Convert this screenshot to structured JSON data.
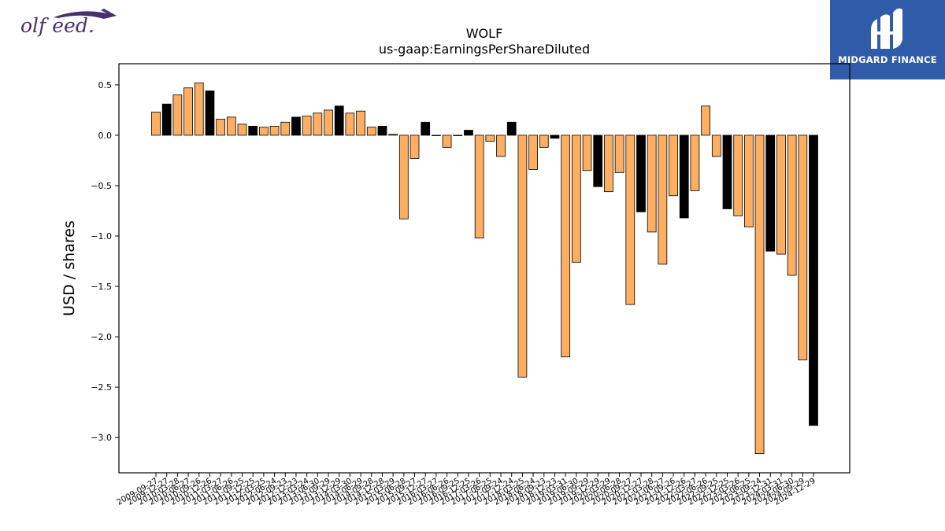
{
  "logos": {
    "left_text": "olf eed.",
    "right_text": "MIDGARD FINANCE"
  },
  "chart_data": {
    "type": "bar",
    "title": "WOLF",
    "subtitle": "us-gaap:EarningsPerShareDiluted",
    "xlabel": "",
    "ylabel": "USD / shares",
    "ylim": [
      -3.35,
      0.71
    ],
    "yticks": [
      0.5,
      0.0,
      -0.5,
      -1.0,
      -1.5,
      -2.0,
      -2.5,
      -3.0
    ],
    "ytick_labels": [
      "0.5",
      "0.0",
      "−0.5",
      "−1.0",
      "−1.5",
      "−2.0",
      "−2.5",
      "−3.0"
    ],
    "grid": false,
    "colors": {
      "quarter": "#fdae61",
      "annual": "#000000",
      "edge": "#000000"
    },
    "categories": [
      "2009-09-27",
      "2009-12-27",
      "2010-03-28",
      "2010-06-27",
      "2010-09-26",
      "2010-12-26",
      "2011-03-27",
      "2011-06-26",
      "2011-09-25",
      "2011-12-25",
      "2012-03-25",
      "2012-06-24",
      "2012-09-23",
      "2012-12-23",
      "2013-03-24",
      "2013-06-30",
      "2013-09-29",
      "2013-12-29",
      "2014-03-30",
      "2014-06-29",
      "2014-09-28",
      "2014-12-28",
      "2015-03-29",
      "2015-06-28",
      "2015-09-27",
      "2015-12-27",
      "2016-03-27",
      "2016-06-26",
      "2016-09-25",
      "2016-12-25",
      "2017-03-26",
      "2017-06-25",
      "2017-09-24",
      "2017-12-24",
      "2018-03-25",
      "2018-06-24",
      "2018-09-23",
      "2018-12-23",
      "2019-03-31",
      "2019-06-30",
      "2019-09-29",
      "2019-12-29",
      "2020-03-29",
      "2020-06-28",
      "2020-09-27",
      "2020-12-27",
      "2021-03-28",
      "2021-06-27",
      "2021-09-26",
      "2021-12-26",
      "2022-03-27",
      "2022-06-26",
      "2022-09-25",
      "2022-12-25",
      "2023-03-26",
      "2023-06-25",
      "2023-09-24",
      "2023-12-31",
      "2024-03-31",
      "2024-06-30",
      "2024-09-29",
      "2024-12-29"
    ],
    "values": [
      0.23,
      0.31,
      0.4,
      0.47,
      0.52,
      0.44,
      0.16,
      0.18,
      0.11,
      0.09,
      0.08,
      0.09,
      0.13,
      0.18,
      0.19,
      0.22,
      0.25,
      0.29,
      0.22,
      0.24,
      0.08,
      0.09,
      0.01,
      -0.83,
      -0.23,
      0.13,
      0.0,
      -0.12,
      0.0,
      0.05,
      -1.02,
      -0.06,
      -0.21,
      0.13,
      -2.4,
      -0.34,
      -0.12,
      -0.03,
      -2.2,
      -1.26,
      -0.35,
      -0.51,
      -0.56,
      -0.37,
      -1.68,
      -0.76,
      -0.96,
      -1.28,
      -0.6,
      -0.82,
      -0.55,
      0.29,
      -0.21,
      -0.73,
      -0.8,
      -0.91,
      -3.16,
      -1.15,
      -1.18,
      -1.39,
      -2.23,
      -2.88
    ],
    "annual_flags": [
      0,
      1,
      0,
      0,
      0,
      1,
      0,
      0,
      0,
      1,
      0,
      0,
      0,
      1,
      0,
      0,
      0,
      1,
      0,
      0,
      0,
      1,
      0,
      0,
      0,
      1,
      0,
      0,
      0,
      1,
      0,
      0,
      0,
      1,
      0,
      0,
      0,
      1,
      0,
      0,
      0,
      1,
      0,
      0,
      0,
      1,
      0,
      0,
      0,
      1,
      0,
      0,
      0,
      1,
      0,
      0,
      0,
      1,
      0,
      0,
      0,
      1
    ]
  }
}
